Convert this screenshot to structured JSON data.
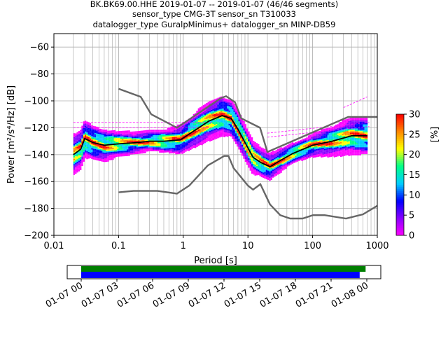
{
  "chart_data": {
    "type": "heatmap",
    "title_lines": [
      "BK.BK69.00.HHE   2019-01-07 -- 2019-01-07  (46/46 segments)",
      "sensor_type CMG-3T sensor_sn T310033",
      "datalogger_type GuralpMinimus+ datalogger_sn MINP-DB59"
    ],
    "xlabel": "Period [s]",
    "ylabel": "Power [m²/s⁴/Hz] [dB]",
    "x_scale": "log",
    "xlim": [
      0.01,
      1000
    ],
    "ylim": [
      -200,
      -50
    ],
    "grid": true,
    "x_ticks": [
      {
        "v": 0.01,
        "label": "0.01"
      },
      {
        "v": 0.1,
        "label": "0.1"
      },
      {
        "v": 1,
        "label": "1"
      },
      {
        "v": 10,
        "label": "10"
      },
      {
        "v": 100,
        "label": "100"
      },
      {
        "v": 1000,
        "label": "1000"
      }
    ],
    "y_ticks": [
      {
        "v": -60,
        "label": "−60"
      },
      {
        "v": -80,
        "label": "−80"
      },
      {
        "v": -100,
        "label": "−100"
      },
      {
        "v": -120,
        "label": "−120"
      },
      {
        "v": -140,
        "label": "−140"
      },
      {
        "v": -160,
        "label": "−160"
      },
      {
        "v": -180,
        "label": "−180"
      },
      {
        "v": -200,
        "label": "−200"
      }
    ],
    "noise_model_high": [
      [
        0.1,
        -91
      ],
      [
        0.22,
        -97
      ],
      [
        0.32,
        -110
      ],
      [
        0.8,
        -120
      ],
      [
        3.8,
        -98
      ],
      [
        4.6,
        -96.5
      ],
      [
        6.3,
        -101
      ],
      [
        7.9,
        -113
      ],
      [
        15.4,
        -120
      ],
      [
        20,
        -138
      ],
      [
        354,
        -112
      ],
      [
        1000,
        -112
      ]
    ],
    "noise_model_low": [
      [
        0.1,
        -168
      ],
      [
        0.17,
        -167
      ],
      [
        0.4,
        -167
      ],
      [
        0.8,
        -169
      ],
      [
        1.24,
        -163
      ],
      [
        2.4,
        -148
      ],
      [
        4.3,
        -141
      ],
      [
        5.0,
        -141
      ],
      [
        6.0,
        -150
      ],
      [
        10,
        -163
      ],
      [
        12,
        -166
      ],
      [
        15.6,
        -162
      ],
      [
        21.9,
        -177
      ],
      [
        31.6,
        -185
      ],
      [
        45,
        -187.5
      ],
      [
        70,
        -187.5
      ],
      [
        101,
        -185
      ],
      [
        154,
        -185
      ],
      [
        328,
        -187.5
      ],
      [
        600,
        -184.4
      ],
      [
        1000,
        -178
      ]
    ],
    "mean_curve": [
      [
        0.02,
        -140
      ],
      [
        0.026,
        -136
      ],
      [
        0.03,
        -128
      ],
      [
        0.04,
        -131
      ],
      [
        0.06,
        -133
      ],
      [
        0.1,
        -132
      ],
      [
        0.2,
        -131
      ],
      [
        0.3,
        -130
      ],
      [
        0.5,
        -130
      ],
      [
        0.9,
        -129
      ],
      [
        1.5,
        -122
      ],
      [
        2.5,
        -115
      ],
      [
        4,
        -111
      ],
      [
        5.5,
        -113
      ],
      [
        7,
        -121
      ],
      [
        9,
        -131
      ],
      [
        12,
        -142
      ],
      [
        16,
        -146
      ],
      [
        22,
        -149
      ],
      [
        30,
        -145
      ],
      [
        50,
        -139
      ],
      [
        100,
        -133
      ],
      [
        200,
        -130
      ],
      [
        400,
        -126
      ],
      [
        700,
        -126
      ]
    ],
    "heatmap_values_percent": "stacked probability bands around the mean curve (dense center, sparse magenta outliers)",
    "colorbar": {
      "label": "[%]",
      "min": 0,
      "max": 30,
      "ticks": [
        {
          "v": 0,
          "label": "0"
        },
        {
          "v": 5,
          "label": "5"
        },
        {
          "v": 10,
          "label": "10"
        },
        {
          "v": 15,
          "label": "15"
        },
        {
          "v": 20,
          "label": "20"
        },
        {
          "v": 25,
          "label": "25"
        },
        {
          "v": 30,
          "label": "30"
        }
      ],
      "colors": [
        "#ff00ff",
        "#8800ff",
        "#0000ff",
        "#00ccff",
        "#00ff88",
        "#ffff00",
        "#ff8800",
        "#ff0000"
      ]
    },
    "timeline": {
      "green_color": "#007f00",
      "blue_color": "#0000ff",
      "start": "2019-01-07 00:00",
      "end": "2019-01-08 00:00",
      "green_end_hours": 23.9,
      "blue_end_hours": 23.4,
      "tick_labels": [
        "01-07 00",
        "01-07 03",
        "01-07 06",
        "01-07 09",
        "01-07 12",
        "01-07 15",
        "01-07 18",
        "01-07 21",
        "01-08 00"
      ]
    }
  }
}
